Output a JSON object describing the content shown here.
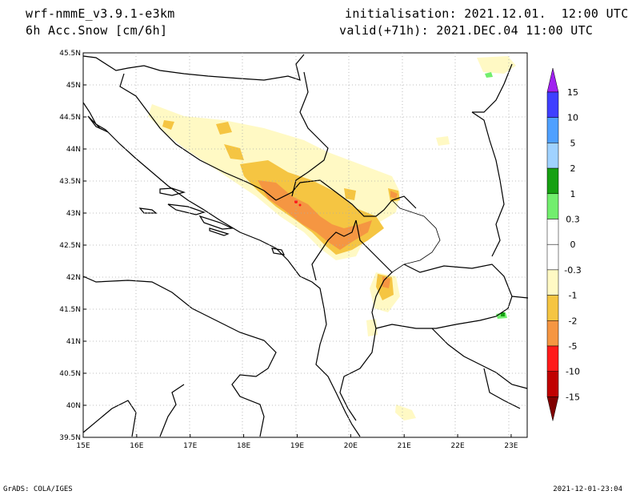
{
  "header": {
    "model": "wrf-nmmE_v3.9.1-e3km",
    "field": "6h Acc.Snow [cm/6h]",
    "init": "initialisation: 2021.12.01.  12:00 UTC",
    "valid": "valid(+71h): 2021.DEC.04 11:00 UTC"
  },
  "footer": {
    "left": "GrADS: COLA/IGES",
    "right": "2021-12-01-23:04"
  },
  "map": {
    "lat_labels": [
      "45.5N",
      "45N",
      "44.5N",
      "44N",
      "43.5N",
      "43N",
      "42.5N",
      "42N",
      "41.5N",
      "41N",
      "40.5N",
      "40N",
      "39.5N"
    ],
    "lon_labels": [
      "15E",
      "16E",
      "17E",
      "18E",
      "19E",
      "20E",
      "21E",
      "22E",
      "23E"
    ],
    "extent": {
      "lon_min": 15,
      "lon_max": 23.3,
      "lat_min": 39.5,
      "lat_max": 45.5
    }
  },
  "legend": {
    "labels": [
      "15",
      "10",
      "5",
      "2",
      "1",
      "0.3",
      "0",
      "-0.3",
      "-1",
      "-2",
      "-5",
      "-10",
      "-15"
    ],
    "colors": [
      "#a020f0",
      "#3f3fff",
      "#4fa0ff",
      "#a0d2ff",
      "#16a012",
      "#72ee6e",
      "#ffffff",
      "#ffffff",
      "#fff9c4",
      "#f5c542",
      "#f59642",
      "#ff1a1a",
      "#c00000",
      "#800000"
    ]
  }
}
